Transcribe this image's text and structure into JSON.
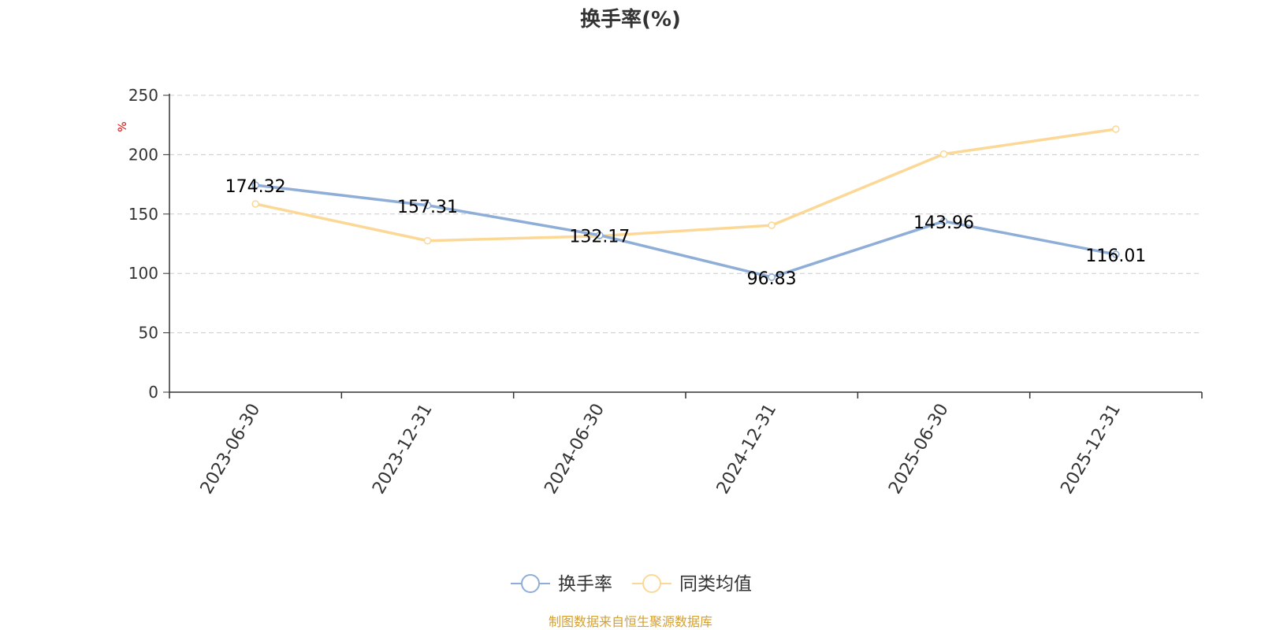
{
  "chart_data": {
    "type": "line",
    "title": "换手率(%)",
    "ylabel": "%",
    "xlabel": "",
    "categories": [
      "2023-06-30",
      "2023-12-31",
      "2024-06-30",
      "2024-12-31",
      "2025-06-30",
      "2025-12-31"
    ],
    "ylim": [
      0,
      250
    ],
    "yticks": [
      0,
      50,
      100,
      150,
      200,
      250
    ],
    "grid": true,
    "legend_position": "bottom",
    "series": [
      {
        "name": "换手率",
        "values": [
          174.32,
          157.31,
          132.17,
          96.83,
          143.96,
          116.01
        ],
        "color": "#8eaed8",
        "show_labels": true
      },
      {
        "name": "同类均值",
        "values": [
          158.5,
          127.5,
          131.5,
          140.5,
          200.5,
          221.5
        ],
        "color": "#fcd896",
        "show_labels": false
      }
    ]
  },
  "source_text": "制图数据来自恒生聚源数据库",
  "colors": {
    "axis": "#333333",
    "grid": "#cccccc",
    "ylabel": "#e00000",
    "source": "#d4a030"
  }
}
